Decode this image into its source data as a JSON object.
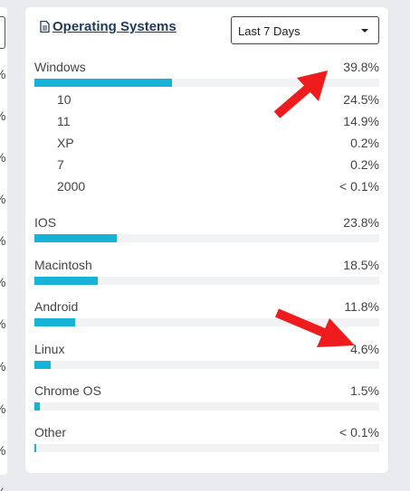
{
  "left_card": {
    "percent_fragments": [
      "%",
      "%",
      "%",
      "%",
      "%",
      "%",
      "%",
      "%",
      "%",
      "%",
      "%",
      "%"
    ]
  },
  "card": {
    "title": "Operating Systems",
    "title_icon": "document-icon",
    "range_select": {
      "value": "Last 7 Days"
    }
  },
  "bar_color": "#17b2d8",
  "arrow_color": "#ee1c1c",
  "os": [
    {
      "name": "Windows",
      "percent": "39.8%",
      "share": 39.8,
      "versions": [
        {
          "name": "10",
          "percent": "24.5%"
        },
        {
          "name": "11",
          "percent": "14.9%"
        },
        {
          "name": "XP",
          "percent": "0.2%"
        },
        {
          "name": "7",
          "percent": "0.2%"
        },
        {
          "name": "2000",
          "percent": "< 0.1%"
        }
      ]
    },
    {
      "name": "IOS",
      "percent": "23.8%",
      "share": 23.8
    },
    {
      "name": "Macintosh",
      "percent": "18.5%",
      "share": 18.5
    },
    {
      "name": "Android",
      "percent": "11.8%",
      "share": 11.8
    },
    {
      "name": "Linux",
      "percent": "4.6%",
      "share": 4.6
    },
    {
      "name": "Chrome OS",
      "percent": "1.5%",
      "share": 1.5
    },
    {
      "name": "Other",
      "percent": "< 0.1%",
      "share": 0.1
    }
  ]
}
